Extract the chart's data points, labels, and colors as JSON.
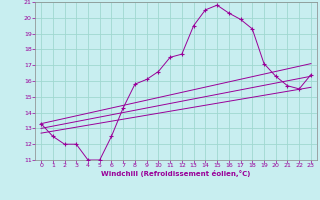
{
  "xlabel": "Windchill (Refroidissement éolien,°C)",
  "background_color": "#c8eef0",
  "grid_color": "#a0d8d0",
  "line_color": "#990099",
  "spine_color": "#888888",
  "xlim": [
    -0.5,
    23.5
  ],
  "ylim": [
    11,
    21
  ],
  "xticks": [
    0,
    1,
    2,
    3,
    4,
    5,
    6,
    7,
    8,
    9,
    10,
    11,
    12,
    13,
    14,
    15,
    16,
    17,
    18,
    19,
    20,
    21,
    22,
    23
  ],
  "yticks": [
    11,
    12,
    13,
    14,
    15,
    16,
    17,
    18,
    19,
    20,
    21
  ],
  "series0_x": [
    0,
    1,
    2,
    3,
    4,
    5,
    6,
    7,
    8,
    9,
    10,
    11,
    12,
    13,
    14,
    15,
    16,
    17,
    18,
    19,
    20,
    21,
    22,
    23
  ],
  "series0_y": [
    13.3,
    12.5,
    12.0,
    12.0,
    11.0,
    11.0,
    12.5,
    14.3,
    15.8,
    16.1,
    16.6,
    17.5,
    17.7,
    19.5,
    20.5,
    20.8,
    20.3,
    19.9,
    19.3,
    17.1,
    16.3,
    15.7,
    15.5,
    16.4
  ],
  "lines": [
    {
      "x": [
        0,
        23
      ],
      "y": [
        13.3,
        17.1
      ]
    },
    {
      "x": [
        0,
        23
      ],
      "y": [
        13.0,
        16.3
      ]
    },
    {
      "x": [
        0,
        23
      ],
      "y": [
        12.7,
        15.6
      ]
    }
  ]
}
